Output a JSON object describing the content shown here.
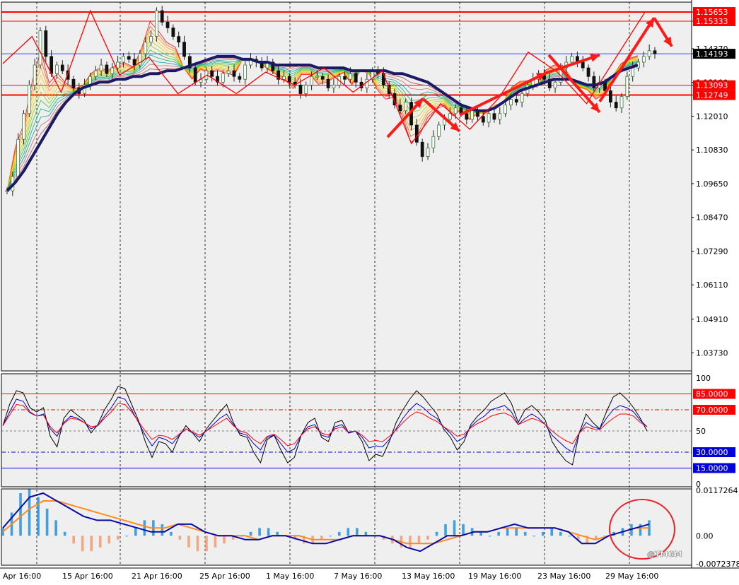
{
  "watermark": "@TMGM",
  "colors": {
    "background": "#efefef",
    "resistance": "#ff0000",
    "price_line": "#4040ff",
    "ma_dark": "#1a1a66",
    "up_candle": "#3a7a3a",
    "down_candle": "#111111",
    "hist_pos": "#3f9fe0",
    "hist_neg": "#f4a582",
    "macd_line": "#0a0aa8",
    "signal_line": "#ff8c1a",
    "level_high": "#ff0000",
    "level_low": "#0000dd"
  },
  "chart_data": [
    {
      "type": "candlestick",
      "panel": "price",
      "y_ticks": [
        "1.15653",
        "1.15333",
        "1.14370",
        "1.14193",
        "1.13190",
        "1.13093",
        "1.12749",
        "1.12010",
        "1.10830",
        "1.09650",
        "1.08470",
        "1.07290",
        "1.06110",
        "1.04910",
        "1.03730"
      ],
      "ylim": [
        1.031,
        1.16
      ],
      "horizontal_levels": [
        {
          "label": "1.15653",
          "value": 1.15653,
          "color": "#ff0000",
          "thick": true
        },
        {
          "label": "1.15333",
          "value": 1.15333,
          "color": "#ff0000",
          "thick": false
        },
        {
          "label": "1.13093",
          "value": 1.13093,
          "color": "#ff0000",
          "thick": false
        },
        {
          "label": "1.12749",
          "value": 1.12749,
          "color": "#ff0000",
          "thick": true
        }
      ],
      "current_price": {
        "label": "1.14193",
        "value": 1.14193
      },
      "close_path": [
        1.094,
        1.099,
        1.112,
        1.121,
        1.131,
        1.138,
        1.15,
        1.141,
        1.135,
        1.138,
        1.136,
        1.133,
        1.13,
        1.128,
        1.131,
        1.134,
        1.136,
        1.138,
        1.135,
        1.137,
        1.139,
        1.141,
        1.14,
        1.138,
        1.142,
        1.146,
        1.148,
        1.157,
        1.153,
        1.151,
        1.148,
        1.146,
        1.141,
        1.137,
        1.132,
        1.133,
        1.136,
        1.134,
        1.132,
        1.135,
        1.136,
        1.134,
        1.133,
        1.138,
        1.14,
        1.139,
        1.137,
        1.139,
        1.136,
        1.133,
        1.134,
        1.132,
        1.131,
        1.128,
        1.131,
        1.134,
        1.134,
        1.133,
        1.13,
        1.131,
        1.134,
        1.133,
        1.135,
        1.132,
        1.13,
        1.133,
        1.136,
        1.135,
        1.131,
        1.128,
        1.124,
        1.122,
        1.125,
        1.117,
        1.111,
        1.106,
        1.109,
        1.113,
        1.117,
        1.119,
        1.121,
        1.123,
        1.121,
        1.119,
        1.122,
        1.12,
        1.118,
        1.121,
        1.119,
        1.121,
        1.124,
        1.126,
        1.125,
        1.128,
        1.131,
        1.133,
        1.135,
        1.133,
        1.13,
        1.132,
        1.137,
        1.139,
        1.141,
        1.139,
        1.137,
        1.134,
        1.13,
        1.132,
        1.129,
        1.125,
        1.123,
        1.127,
        1.134,
        1.137,
        1.139,
        1.141,
        1.143,
        1.142
      ],
      "zigzag": [
        1.1385,
        1.148,
        1.1285,
        1.157,
        1.1345,
        1.1408,
        1.128,
        1.1345,
        1.128,
        1.1355,
        1.131,
        1.137,
        1.1285,
        1.136,
        1.1105,
        1.1245,
        1.1155,
        1.1265,
        1.1425,
        1.1355,
        1.1245,
        1.1405,
        1.1565
      ],
      "forecast_arrows": [
        [
          1.1128,
          1.1262
        ],
        [
          1.1262,
          1.1148
        ],
        [
          1.1205,
          1.1352
        ],
        [
          1.1352,
          1.1415
        ],
        [
          1.1415,
          1.1215
        ],
        [
          1.1252,
          1.1545
        ],
        [
          1.1545,
          1.1445
        ]
      ],
      "moving_average": [
        1.094,
        1.097,
        1.101,
        1.106,
        1.111,
        1.116,
        1.121,
        1.125,
        1.128,
        1.13,
        1.131,
        1.132,
        1.132,
        1.133,
        1.133,
        1.134,
        1.134,
        1.135,
        1.135,
        1.136,
        1.136,
        1.137,
        1.138,
        1.139,
        1.14,
        1.141,
        1.141,
        1.141,
        1.14,
        1.14,
        1.139,
        1.139,
        1.138,
        1.138,
        1.138,
        1.138,
        1.138,
        1.137,
        1.137,
        1.137,
        1.137,
        1.136,
        1.136,
        1.136,
        1.136,
        1.136,
        1.135,
        1.135,
        1.134,
        1.133,
        1.132,
        1.13,
        1.128,
        1.126,
        1.124,
        1.123,
        1.122,
        1.122,
        1.123,
        1.125,
        1.127,
        1.129,
        1.13,
        1.131,
        1.132,
        1.133,
        1.133,
        1.133,
        1.132,
        1.131,
        1.131,
        1.132,
        1.134,
        1.136,
        1.137,
        1.138
      ],
      "x_tick_labels": [
        "Apr 16:00",
        "15 Apr 16:00",
        "21 Apr 16:00",
        "25 Apr 16:00",
        "1 May 16:00",
        "7 May 16:00",
        "13 May 16:00",
        "19 May 16:00",
        "23 May 16:00",
        "29 May 16:00"
      ]
    },
    {
      "type": "line",
      "panel": "oscillator",
      "ylim": [
        0,
        100
      ],
      "y_ticks": [
        "100",
        "50",
        "0"
      ],
      "levels": [
        {
          "label": "85.0000",
          "value": 85,
          "color": "#ff0000",
          "style": "solid"
        },
        {
          "label": "70.0000",
          "value": 70,
          "color": "#ff0000",
          "style": "dashdot"
        },
        {
          "label": "30.0000",
          "value": 30,
          "color": "#0000dd",
          "style": "dashdot"
        },
        {
          "label": "15.0000",
          "value": 15,
          "color": "#0000dd",
          "style": "solid"
        }
      ],
      "series": [
        {
          "color": "#000000",
          "values": [
            55,
            75,
            88,
            86,
            72,
            68,
            72,
            45,
            35,
            62,
            70,
            65,
            60,
            48,
            56,
            70,
            80,
            92,
            90,
            75,
            60,
            40,
            25,
            40,
            38,
            30,
            45,
            55,
            48,
            40,
            52,
            60,
            68,
            75,
            58,
            46,
            44,
            30,
            20,
            42,
            46,
            32,
            20,
            25,
            46,
            58,
            62,
            44,
            40,
            58,
            60,
            48,
            50,
            40,
            22,
            28,
            26,
            40,
            58,
            70,
            80,
            88,
            82,
            74,
            66,
            52,
            44,
            32,
            40,
            56,
            64,
            70,
            78,
            82,
            86,
            76,
            58,
            70,
            74,
            68,
            60,
            40,
            30,
            22,
            18,
            48,
            66,
            58,
            52,
            68,
            82,
            86,
            80,
            72,
            62,
            50
          ]
        },
        {
          "color": "#0000cc",
          "values": [
            55,
            68,
            80,
            78,
            68,
            64,
            66,
            52,
            45,
            58,
            64,
            62,
            58,
            52,
            55,
            64,
            72,
            82,
            80,
            70,
            58,
            46,
            36,
            44,
            42,
            38,
            46,
            52,
            48,
            44,
            50,
            56,
            62,
            66,
            56,
            48,
            46,
            38,
            32,
            44,
            46,
            38,
            30,
            33,
            46,
            54,
            56,
            46,
            44,
            54,
            56,
            48,
            50,
            44,
            34,
            36,
            35,
            42,
            52,
            62,
            70,
            76,
            72,
            66,
            62,
            54,
            48,
            40,
            44,
            54,
            60,
            64,
            70,
            72,
            74,
            68,
            56,
            62,
            66,
            62,
            56,
            46,
            40,
            34,
            30,
            48,
            58,
            54,
            52,
            62,
            70,
            74,
            72,
            68,
            60,
            54
          ]
        },
        {
          "color": "#ff0000",
          "values": [
            55,
            65,
            75,
            74,
            67,
            64,
            65,
            54,
            48,
            57,
            62,
            61,
            58,
            54,
            55,
            62,
            68,
            76,
            75,
            68,
            59,
            50,
            42,
            46,
            45,
            42,
            47,
            52,
            49,
            46,
            50,
            54,
            58,
            62,
            55,
            50,
            48,
            42,
            38,
            45,
            47,
            42,
            36,
            38,
            46,
            52,
            54,
            48,
            46,
            52,
            54,
            49,
            50,
            46,
            40,
            41,
            40,
            45,
            51,
            58,
            64,
            68,
            66,
            62,
            59,
            54,
            50,
            45,
            47,
            53,
            57,
            60,
            64,
            66,
            67,
            64,
            56,
            59,
            62,
            60,
            56,
            50,
            45,
            41,
            38,
            48,
            54,
            52,
            51,
            57,
            62,
            66,
            66,
            64,
            58,
            54
          ]
        }
      ]
    },
    {
      "type": "bar",
      "panel": "macd",
      "y_ticks": [
        "0.0117264",
        "0.00",
        "-0.0072378"
      ],
      "ylim": [
        -0.0072378,
        0.0117264
      ],
      "histogram": [
        0.002,
        0.006,
        0.011,
        0.012,
        0.01,
        0.007,
        0.004,
        0.001,
        -0.002,
        -0.004,
        -0.004,
        -0.003,
        -0.002,
        -0.001,
        0.0,
        0.002,
        0.004,
        0.004,
        0.003,
        0.001,
        -0.001,
        -0.003,
        -0.004,
        -0.004,
        -0.003,
        -0.002,
        -0.001,
        0.0,
        0.001,
        0.002,
        0.002,
        0.001,
        0.0,
        -0.001,
        -0.002,
        -0.002,
        -0.001,
        0.0,
        0.001,
        0.002,
        0.002,
        0.001,
        0.0,
        -0.001,
        -0.002,
        -0.003,
        -0.003,
        -0.002,
        -0.001,
        0.001,
        0.003,
        0.004,
        0.003,
        0.002,
        0.001,
        0.0,
        0.001,
        0.002,
        0.002,
        0.001,
        0.0,
        0.001,
        0.002,
        0.001,
        0.0,
        -0.001,
        -0.002,
        -0.001,
        0.0,
        0.001,
        0.002,
        0.003,
        0.003,
        0.004
      ],
      "macd": [
        0.002,
        0.006,
        0.01,
        0.011,
        0.009,
        0.007,
        0.005,
        0.004,
        0.004,
        0.003,
        0.002,
        0.001,
        0.001,
        0.003,
        0.003,
        0.001,
        0.0,
        0.0,
        -0.001,
        -0.001,
        0.0,
        0.0,
        -0.001,
        -0.002,
        -0.002,
        -0.001,
        0.0,
        0.0,
        0.0,
        -0.001,
        -0.003,
        -0.004,
        -0.002,
        0.0,
        0.0,
        0.001,
        0.001,
        0.002,
        0.003,
        0.002,
        0.002,
        0.002,
        0.001,
        -0.002,
        -0.002,
        0.0,
        0.001,
        0.002,
        0.003
      ],
      "signal": [
        0.001,
        0.004,
        0.007,
        0.009,
        0.009,
        0.008,
        0.007,
        0.006,
        0.005,
        0.004,
        0.003,
        0.002,
        0.002,
        0.003,
        0.002,
        0.001,
        0.0,
        0.0,
        0.0,
        -0.001,
        0.0,
        0.0,
        0.0,
        -0.001,
        -0.001,
        -0.001,
        0.0,
        0.0,
        0.0,
        -0.001,
        -0.002,
        -0.002,
        -0.002,
        -0.001,
        0.0,
        0.001,
        0.001,
        0.002,
        0.002,
        0.002,
        0.002,
        0.002,
        0.001,
        0.0,
        -0.001,
        0.0,
        0.001,
        0.002,
        0.002
      ]
    }
  ]
}
